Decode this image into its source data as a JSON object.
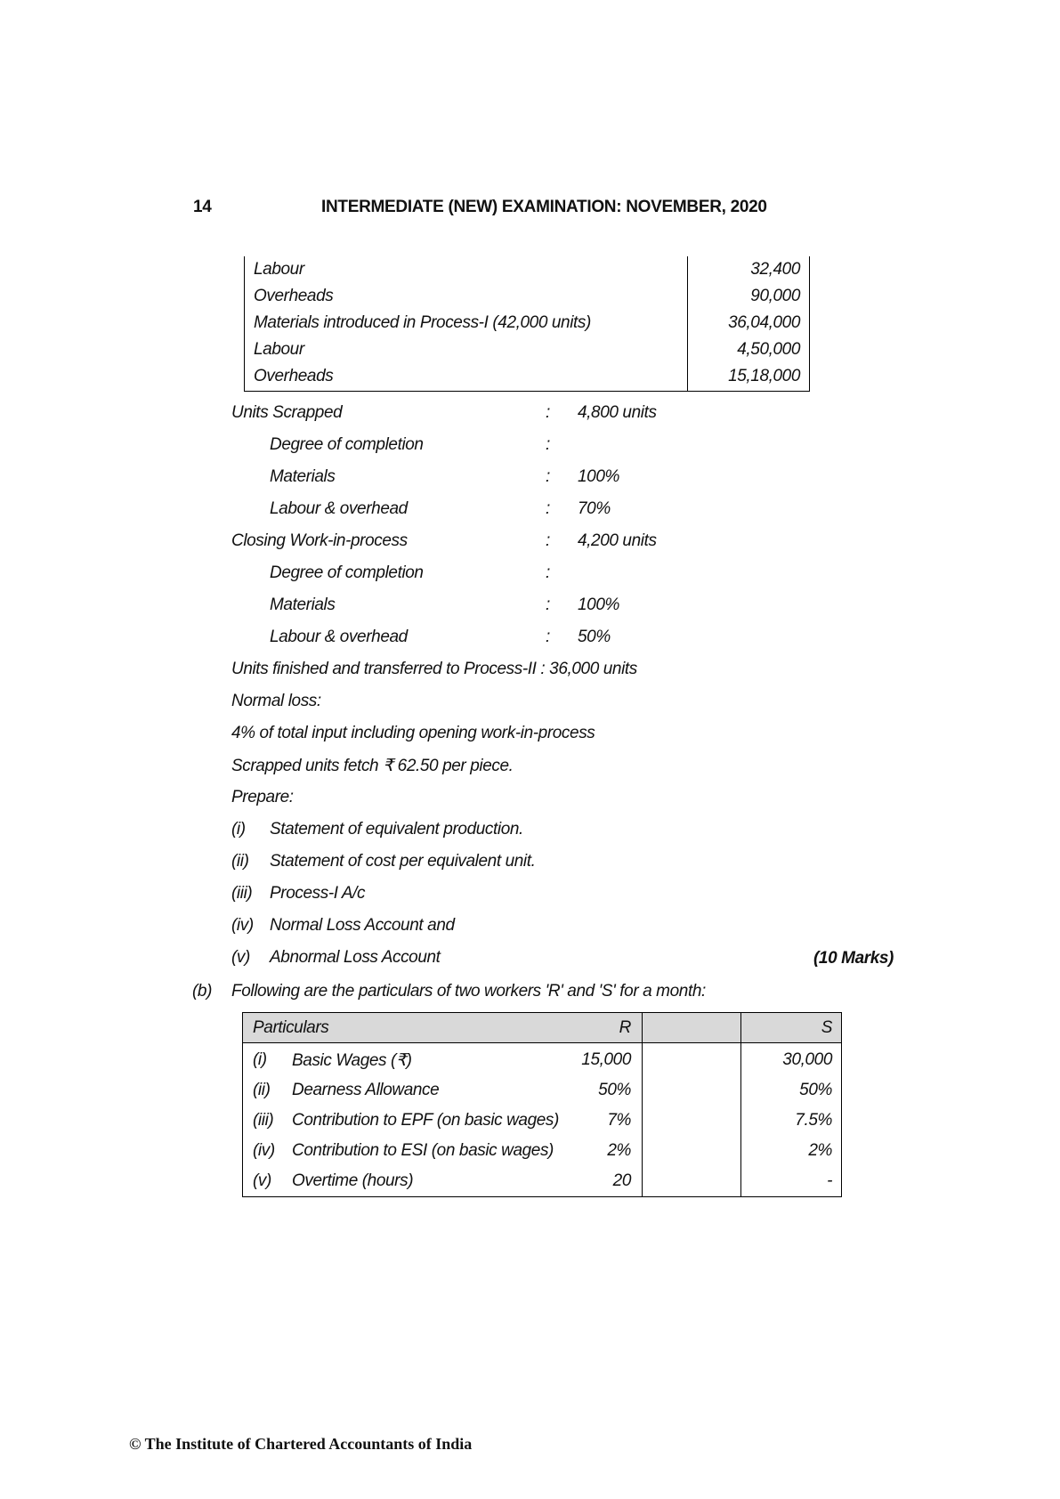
{
  "header": {
    "page_number": "14",
    "title": "INTERMEDIATE (NEW) EXAMINATION: NOVEMBER, 2020"
  },
  "cost_table": {
    "rows": [
      {
        "label": "Labour",
        "value": "32,400"
      },
      {
        "label": "Overheads",
        "value": "90,000"
      },
      {
        "label": "Materials introduced in Process-I (42,000 units)",
        "value": "36,04,000"
      },
      {
        "label": "Labour",
        "value": "4,50,000"
      },
      {
        "label": "Overheads",
        "value": "15,18,000"
      }
    ]
  },
  "details": [
    {
      "label": "Units Scrapped",
      "colon": ":",
      "value": "4,800 units",
      "indent": false
    },
    {
      "label": "Degree of completion",
      "colon": ":",
      "value": "",
      "indent": true
    },
    {
      "label": "Materials",
      "colon": ":",
      "value": "100%",
      "indent": true
    },
    {
      "label": "Labour & overhead",
      "colon": ":",
      "value": "70%",
      "indent": true
    },
    {
      "label": "Closing Work-in-process",
      "colon": ":",
      "value": "4,200 units",
      "indent": false
    },
    {
      "label": "Degree of completion",
      "colon": ":",
      "value": "",
      "indent": true
    },
    {
      "label": "Materials",
      "colon": ":",
      "value": "100%",
      "indent": true
    },
    {
      "label": "Labour & overhead",
      "colon": ":",
      "value": "50%",
      "indent": true
    }
  ],
  "paragraphs": [
    "Units finished and transferred to Process-II :  36,000 units",
    "Normal loss:",
    "4% of total input including opening work-in-process",
    "Scrapped units fetch  ₹ 62.50 per piece.",
    "Prepare:"
  ],
  "prepare_items": [
    {
      "num": "(i)",
      "text": "Statement of equivalent production."
    },
    {
      "num": "(ii)",
      "text": "Statement of cost per equivalent unit."
    },
    {
      "num": "(iii)",
      "text": "Process-I A/c"
    },
    {
      "num": "(iv)",
      "text": "Normal Loss Account and"
    },
    {
      "num": "(v)",
      "text": "Abnormal Loss Account"
    }
  ],
  "marks": "(10 Marks)",
  "part_b": {
    "label": "(b)",
    "text": "Following are the particulars of two workers 'R' and 'S' for a month:"
  },
  "workers_table": {
    "headers": [
      "Particulars",
      "R",
      "S"
    ],
    "rows": [
      {
        "num": "(i)",
        "particular": "Basic Wages (₹)",
        "r": "15,000",
        "s": "30,000"
      },
      {
        "num": "(ii)",
        "particular": "Dearness Allowance",
        "r": "50%",
        "s": "50%"
      },
      {
        "num": "(iii)",
        "particular": "Contribution to EPF (on basic wages)",
        "r": "7%",
        "s": "7.5%"
      },
      {
        "num": "(iv)",
        "particular": "Contribution to ESI (on basic wages)",
        "r": "2%",
        "s": "2%"
      },
      {
        "num": "(v)",
        "particular": "Overtime (hours)",
        "r": "20",
        "s": "-"
      }
    ]
  },
  "footer": "© The Institute of Chartered Accountants of India"
}
